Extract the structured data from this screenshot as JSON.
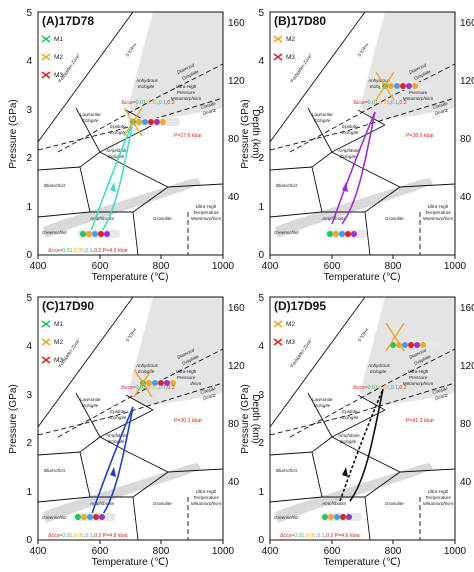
{
  "colors": {
    "M1": "#22c55e",
    "M2": "#f5a623",
    "M3": "#e0241b",
    "annotation": "#e0241b",
    "panel_A_path": "#3de0c4",
    "panel_B_path": "#9b30d9",
    "panel_C_path": "#1f3fd1",
    "panel_D_path": "#111111",
    "shade": "#dcdcdc"
  },
  "axes": {
    "x_label": "Temperature (℃)",
    "y_left_label": "Pressure (GPa)",
    "y_right_label": "Depth (km)",
    "x_ticks": [
      "400",
      "600",
      "800",
      "1000"
    ],
    "y_left_ticks": [
      "0",
      "1",
      "2",
      "3",
      "4",
      "5"
    ],
    "y_right_ticks": [
      "40",
      "80",
      "120",
      "160"
    ]
  },
  "fields": {
    "forbidden_zone": "\"Forbidden Zone\"",
    "coesite_quartz_top": "Coesite",
    "coesite_quartz_bottom": "Quartz",
    "diamond_graphite_top": "Diamond",
    "diamond_graphite_bottom": "Graphite",
    "lawsonite_line1": "Lawsonite",
    "lawsonite_line2": "Eclogite",
    "epidote_line1": "Epidote",
    "epidote_line2": "Eclogite",
    "amphibole_line1": "Amphibole",
    "amphibole_line2": "Eclogite",
    "anhydrous_line1": "Anhydrous",
    "anhydrous_line2": "Eclogite",
    "uhp_line1": "Ultra-High",
    "uhp_line2": "Pressure",
    "uhp_line3": "Metamorphism",
    "uht_line1": "Ultra-High",
    "uht_line2": "Temperature",
    "uht_line3": "Metamorphism",
    "blueschist": "Blueschist",
    "greenschist": "Greenschist",
    "amphibolite": "Amphibolite",
    "granulite": "Granulite",
    "gradient": "5℃/km"
  },
  "legend": {
    "M1": "M1",
    "M2": "M2",
    "M3": "M3"
  },
  "panels": [
    {
      "title": "(A)17D78",
      "markers": [
        "M1",
        "M2",
        "M3"
      ],
      "ann1_prefix": "Δccs=",
      "ann1_vals": [
        "0.01",
        "0.05",
        "0.1",
        "0.2"
      ],
      "ann1_suffix": "",
      "ann2": "P=27.6 kbar",
      "ann3_prefix": "Δccs=",
      "ann3_vals": [
        "0.01",
        "0.05",
        "0.1",
        "0.2"
      ],
      "ann3_suffix": " P=4.6 kbar"
    },
    {
      "title": "(B)17D80",
      "markers": [
        "M2",
        "M3"
      ],
      "ann1_prefix": "Δccs=",
      "ann1_vals": [
        "0.01",
        "0.05",
        "0.1",
        "0.2"
      ],
      "ann1_suffix": "",
      "ann2": "P=38.2 kbar",
      "ann3_prefix": "",
      "ann3_vals": [],
      "ann3_suffix": ""
    },
    {
      "title": "(C)17D90",
      "markers": [
        "M1",
        "M2",
        "M3"
      ],
      "ann1_prefix": "Δccs=",
      "ann1_vals": [
        "0.01",
        "0.05",
        "0.1",
        "0.2"
      ],
      "ann1_suffix": "",
      "ann2": "P=30.1 kbar",
      "ann3_prefix": "Δccs=",
      "ann3_vals": [
        "0.01",
        "0.05",
        "0.1",
        "0.2"
      ],
      "ann3_suffix": " P=4.8 kbar"
    },
    {
      "title": "(D)17D95",
      "markers": [
        "M2",
        "M3"
      ],
      "ann1_prefix": "Δccs=",
      "ann1_vals": [
        "0.01",
        "0.05",
        "0.1",
        "0.2"
      ],
      "ann1_suffix": "",
      "ann2": "P=41.3 kbar",
      "ann3_prefix": "Δccs=",
      "ann3_vals": [
        "0.01",
        "0.05",
        "0.1",
        "0.2"
      ],
      "ann3_suffix": " P=4.6 kbar"
    }
  ]
}
